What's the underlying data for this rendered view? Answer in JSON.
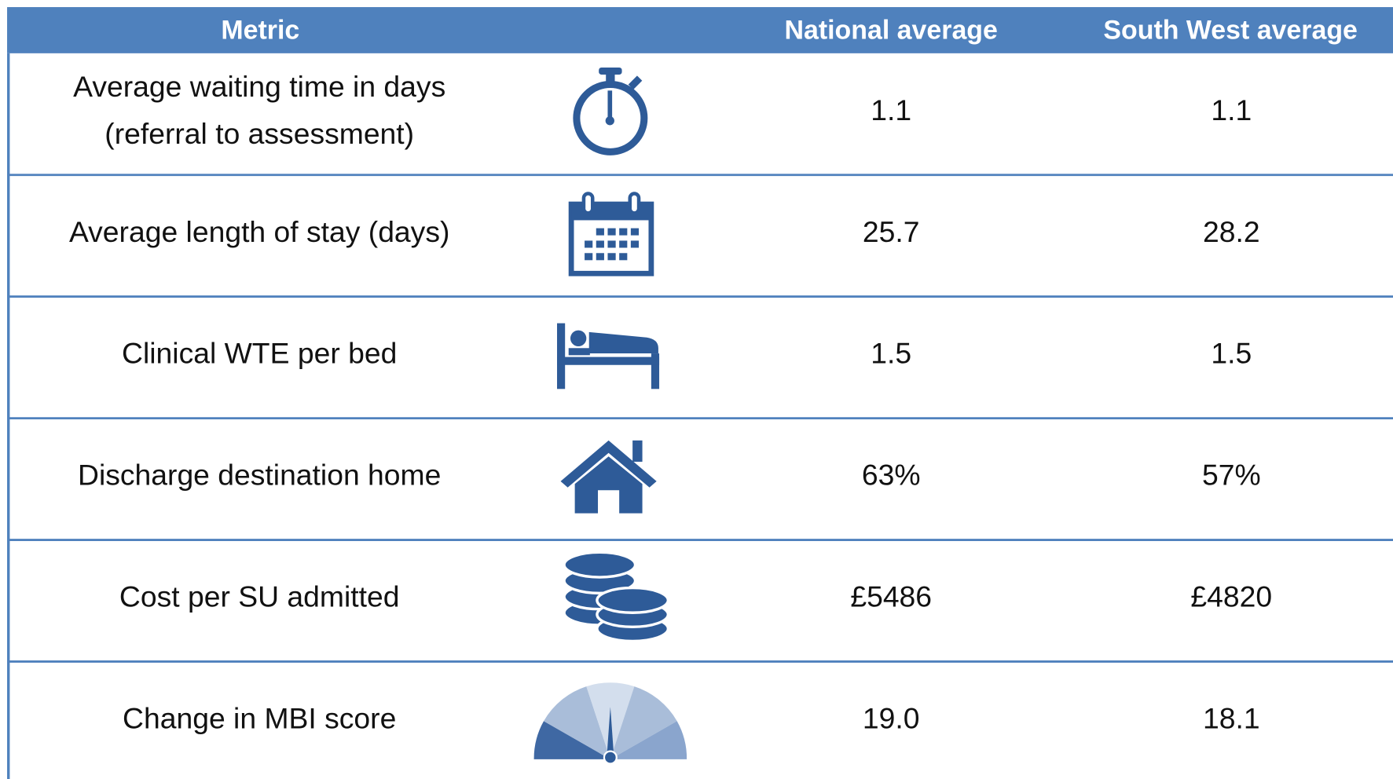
{
  "table": {
    "columns": [
      "Metric",
      "National average",
      "South West average"
    ],
    "rows": [
      {
        "metric": [
          "Average waiting time in days",
          "(referral to assessment)"
        ],
        "national": "1.1",
        "south_west": "1.1"
      },
      {
        "metric": [
          "Average length of stay (days)"
        ],
        "national": "25.7",
        "south_west": "28.2"
      },
      {
        "metric": [
          "Clinical WTE per bed"
        ],
        "national": "1.5",
        "south_west": "1.5"
      },
      {
        "metric": [
          "Discharge destination home"
        ],
        "national": "63%",
        "south_west": "57%"
      },
      {
        "metric": [
          "Cost per SU admitted"
        ],
        "national": "£5486",
        "south_west": "£4820"
      },
      {
        "metric": [
          "Change in MBI score"
        ],
        "national": "19.0",
        "south_west": "18.1"
      }
    ]
  }
}
